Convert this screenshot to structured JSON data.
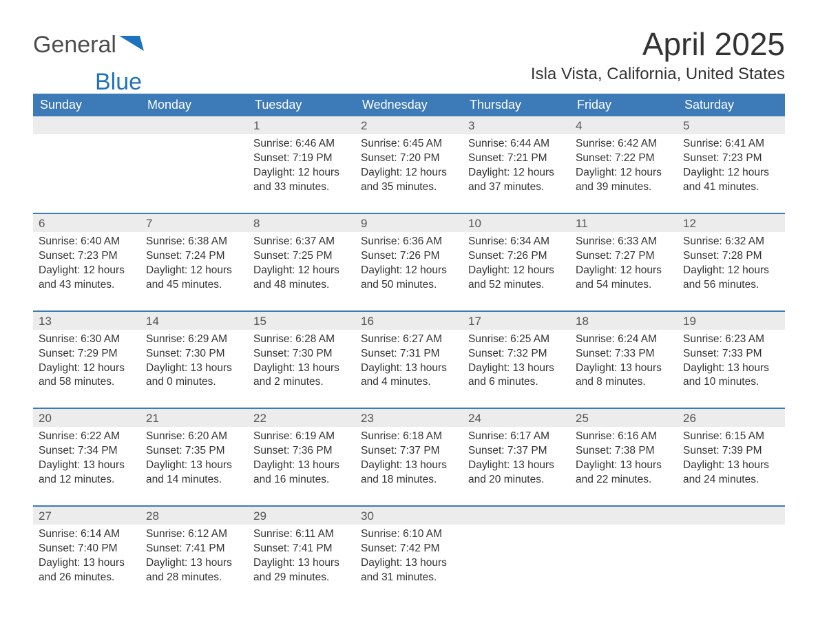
{
  "logo": {
    "general": "General",
    "blue": "Blue"
  },
  "title": "April 2025",
  "location": "Isla Vista, California, United States",
  "colors": {
    "header_bg": "#3c7ab8",
    "header_text": "#ffffff",
    "daynum_bg": "#ececec",
    "sep_color": "#3c7ab8",
    "text": "#333333",
    "logo_gray": "#4d4d4d",
    "logo_blue": "#1e73be"
  },
  "weekdays": [
    "Sunday",
    "Monday",
    "Tuesday",
    "Wednesday",
    "Thursday",
    "Friday",
    "Saturday"
  ],
  "weeks": [
    [
      null,
      null,
      {
        "n": "1",
        "sr": "Sunrise: 6:46 AM",
        "ss": "Sunset: 7:19 PM",
        "d1": "Daylight: 12 hours",
        "d2": "and 33 minutes."
      },
      {
        "n": "2",
        "sr": "Sunrise: 6:45 AM",
        "ss": "Sunset: 7:20 PM",
        "d1": "Daylight: 12 hours",
        "d2": "and 35 minutes."
      },
      {
        "n": "3",
        "sr": "Sunrise: 6:44 AM",
        "ss": "Sunset: 7:21 PM",
        "d1": "Daylight: 12 hours",
        "d2": "and 37 minutes."
      },
      {
        "n": "4",
        "sr": "Sunrise: 6:42 AM",
        "ss": "Sunset: 7:22 PM",
        "d1": "Daylight: 12 hours",
        "d2": "and 39 minutes."
      },
      {
        "n": "5",
        "sr": "Sunrise: 6:41 AM",
        "ss": "Sunset: 7:23 PM",
        "d1": "Daylight: 12 hours",
        "d2": "and 41 minutes."
      }
    ],
    [
      {
        "n": "6",
        "sr": "Sunrise: 6:40 AM",
        "ss": "Sunset: 7:23 PM",
        "d1": "Daylight: 12 hours",
        "d2": "and 43 minutes."
      },
      {
        "n": "7",
        "sr": "Sunrise: 6:38 AM",
        "ss": "Sunset: 7:24 PM",
        "d1": "Daylight: 12 hours",
        "d2": "and 45 minutes."
      },
      {
        "n": "8",
        "sr": "Sunrise: 6:37 AM",
        "ss": "Sunset: 7:25 PM",
        "d1": "Daylight: 12 hours",
        "d2": "and 48 minutes."
      },
      {
        "n": "9",
        "sr": "Sunrise: 6:36 AM",
        "ss": "Sunset: 7:26 PM",
        "d1": "Daylight: 12 hours",
        "d2": "and 50 minutes."
      },
      {
        "n": "10",
        "sr": "Sunrise: 6:34 AM",
        "ss": "Sunset: 7:26 PM",
        "d1": "Daylight: 12 hours",
        "d2": "and 52 minutes."
      },
      {
        "n": "11",
        "sr": "Sunrise: 6:33 AM",
        "ss": "Sunset: 7:27 PM",
        "d1": "Daylight: 12 hours",
        "d2": "and 54 minutes."
      },
      {
        "n": "12",
        "sr": "Sunrise: 6:32 AM",
        "ss": "Sunset: 7:28 PM",
        "d1": "Daylight: 12 hours",
        "d2": "and 56 minutes."
      }
    ],
    [
      {
        "n": "13",
        "sr": "Sunrise: 6:30 AM",
        "ss": "Sunset: 7:29 PM",
        "d1": "Daylight: 12 hours",
        "d2": "and 58 minutes."
      },
      {
        "n": "14",
        "sr": "Sunrise: 6:29 AM",
        "ss": "Sunset: 7:30 PM",
        "d1": "Daylight: 13 hours",
        "d2": "and 0 minutes."
      },
      {
        "n": "15",
        "sr": "Sunrise: 6:28 AM",
        "ss": "Sunset: 7:30 PM",
        "d1": "Daylight: 13 hours",
        "d2": "and 2 minutes."
      },
      {
        "n": "16",
        "sr": "Sunrise: 6:27 AM",
        "ss": "Sunset: 7:31 PM",
        "d1": "Daylight: 13 hours",
        "d2": "and 4 minutes."
      },
      {
        "n": "17",
        "sr": "Sunrise: 6:25 AM",
        "ss": "Sunset: 7:32 PM",
        "d1": "Daylight: 13 hours",
        "d2": "and 6 minutes."
      },
      {
        "n": "18",
        "sr": "Sunrise: 6:24 AM",
        "ss": "Sunset: 7:33 PM",
        "d1": "Daylight: 13 hours",
        "d2": "and 8 minutes."
      },
      {
        "n": "19",
        "sr": "Sunrise: 6:23 AM",
        "ss": "Sunset: 7:33 PM",
        "d1": "Daylight: 13 hours",
        "d2": "and 10 minutes."
      }
    ],
    [
      {
        "n": "20",
        "sr": "Sunrise: 6:22 AM",
        "ss": "Sunset: 7:34 PM",
        "d1": "Daylight: 13 hours",
        "d2": "and 12 minutes."
      },
      {
        "n": "21",
        "sr": "Sunrise: 6:20 AM",
        "ss": "Sunset: 7:35 PM",
        "d1": "Daylight: 13 hours",
        "d2": "and 14 minutes."
      },
      {
        "n": "22",
        "sr": "Sunrise: 6:19 AM",
        "ss": "Sunset: 7:36 PM",
        "d1": "Daylight: 13 hours",
        "d2": "and 16 minutes."
      },
      {
        "n": "23",
        "sr": "Sunrise: 6:18 AM",
        "ss": "Sunset: 7:37 PM",
        "d1": "Daylight: 13 hours",
        "d2": "and 18 minutes."
      },
      {
        "n": "24",
        "sr": "Sunrise: 6:17 AM",
        "ss": "Sunset: 7:37 PM",
        "d1": "Daylight: 13 hours",
        "d2": "and 20 minutes."
      },
      {
        "n": "25",
        "sr": "Sunrise: 6:16 AM",
        "ss": "Sunset: 7:38 PM",
        "d1": "Daylight: 13 hours",
        "d2": "and 22 minutes."
      },
      {
        "n": "26",
        "sr": "Sunrise: 6:15 AM",
        "ss": "Sunset: 7:39 PM",
        "d1": "Daylight: 13 hours",
        "d2": "and 24 minutes."
      }
    ],
    [
      {
        "n": "27",
        "sr": "Sunrise: 6:14 AM",
        "ss": "Sunset: 7:40 PM",
        "d1": "Daylight: 13 hours",
        "d2": "and 26 minutes."
      },
      {
        "n": "28",
        "sr": "Sunrise: 6:12 AM",
        "ss": "Sunset: 7:41 PM",
        "d1": "Daylight: 13 hours",
        "d2": "and 28 minutes."
      },
      {
        "n": "29",
        "sr": "Sunrise: 6:11 AM",
        "ss": "Sunset: 7:41 PM",
        "d1": "Daylight: 13 hours",
        "d2": "and 29 minutes."
      },
      {
        "n": "30",
        "sr": "Sunrise: 6:10 AM",
        "ss": "Sunset: 7:42 PM",
        "d1": "Daylight: 13 hours",
        "d2": "and 31 minutes."
      },
      null,
      null,
      null
    ]
  ]
}
